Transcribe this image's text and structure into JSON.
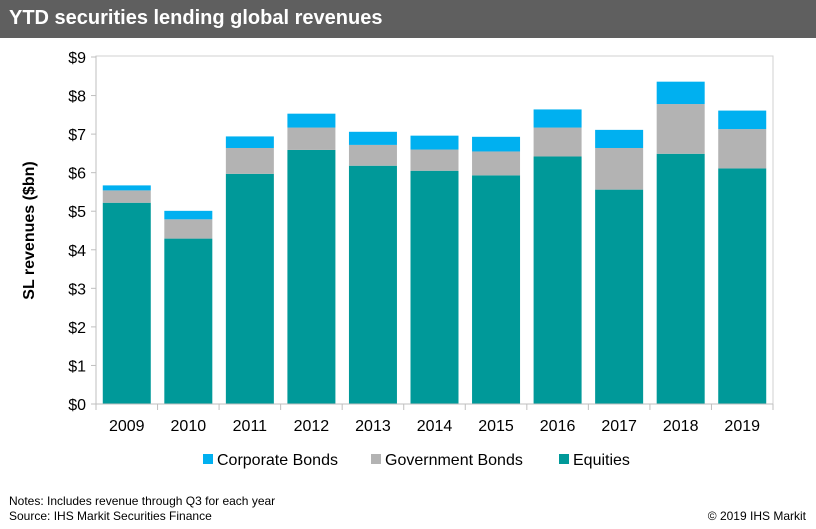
{
  "title": "YTD securities lending global revenues",
  "notes": {
    "line1": "Notes: Includes revenue through Q3 for each year",
    "line2": "Source: IHS Markit Securities Finance"
  },
  "copyright": "© 2019 IHS Markit",
  "colors": {
    "title_bar": "#5f5f5f",
    "equities": "#009999",
    "government_bonds": "#b3b3b3",
    "corporate_bonds": "#00b0f0"
  },
  "chart_data": {
    "type": "bar",
    "stacked": true,
    "title": "YTD securities lending global revenues",
    "ylabel": "SL revenues ($bn)",
    "xlabel": "",
    "ylim": [
      0,
      9
    ],
    "yticks": [
      "$0",
      "$1",
      "$2",
      "$3",
      "$4",
      "$5",
      "$6",
      "$7",
      "$8",
      "$9"
    ],
    "grid": false,
    "legend_position": "bottom",
    "categories": [
      "2009",
      "2010",
      "2011",
      "2012",
      "2013",
      "2014",
      "2015",
      "2016",
      "2017",
      "2018",
      "2019"
    ],
    "series": [
      {
        "name": "Equities",
        "color": "#009999",
        "values": [
          5.22,
          4.29,
          5.97,
          6.59,
          6.18,
          6.05,
          5.93,
          6.42,
          5.56,
          6.49,
          6.11
        ]
      },
      {
        "name": "Government Bonds",
        "color": "#b3b3b3",
        "values": [
          0.32,
          0.5,
          0.67,
          0.58,
          0.54,
          0.55,
          0.62,
          0.75,
          1.08,
          1.29,
          1.02
        ]
      },
      {
        "name": "Corporate Bonds",
        "color": "#00b0f0",
        "values": [
          0.13,
          0.22,
          0.3,
          0.36,
          0.34,
          0.36,
          0.38,
          0.47,
          0.47,
          0.58,
          0.48
        ]
      }
    ],
    "legend": [
      "Corporate Bonds",
      "Government Bonds",
      "Equities"
    ]
  }
}
